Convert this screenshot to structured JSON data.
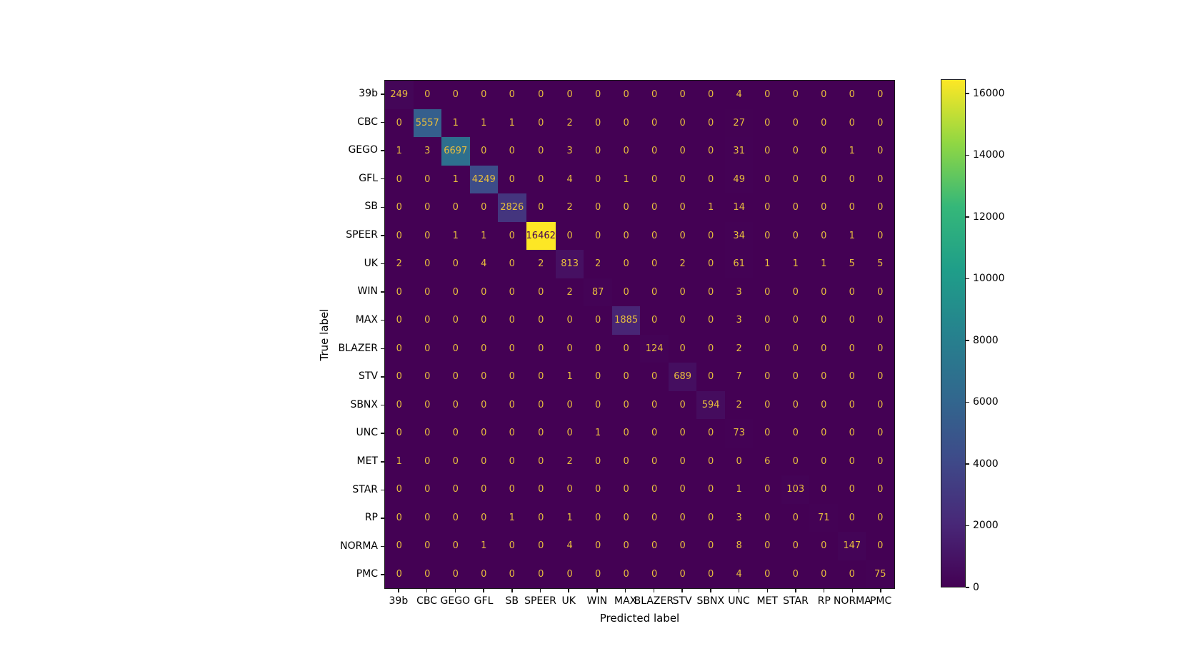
{
  "figure": {
    "background_color": "#ffffff",
    "title": ""
  },
  "chart_data": {
    "type": "heatmap",
    "subtype": "confusion-matrix",
    "title": "",
    "xlabel": "Predicted label",
    "ylabel": "True label",
    "categories": [
      "39b",
      "CBC",
      "GEGO",
      "GFL",
      "SB",
      "SPEER",
      "UK",
      "WIN",
      "MAX",
      "BLAZER",
      "STV",
      "SBNX",
      "UNC",
      "MET",
      "STAR",
      "RP",
      "NORMA",
      "PMC"
    ],
    "matrix": [
      [
        249,
        0,
        0,
        0,
        0,
        0,
        0,
        0,
        0,
        0,
        0,
        0,
        4,
        0,
        0,
        0,
        0,
        0
      ],
      [
        0,
        5557,
        1,
        1,
        1,
        0,
        2,
        0,
        0,
        0,
        0,
        0,
        27,
        0,
        0,
        0,
        0,
        0
      ],
      [
        1,
        3,
        6697,
        0,
        0,
        0,
        3,
        0,
        0,
        0,
        0,
        0,
        31,
        0,
        0,
        0,
        1,
        0
      ],
      [
        0,
        0,
        1,
        4249,
        0,
        0,
        4,
        0,
        1,
        0,
        0,
        0,
        49,
        0,
        0,
        0,
        0,
        0
      ],
      [
        0,
        0,
        0,
        0,
        2826,
        0,
        2,
        0,
        0,
        0,
        0,
        1,
        14,
        0,
        0,
        0,
        0,
        0
      ],
      [
        0,
        0,
        1,
        1,
        0,
        16462,
        0,
        0,
        0,
        0,
        0,
        0,
        34,
        0,
        0,
        0,
        1,
        0
      ],
      [
        2,
        0,
        0,
        4,
        0,
        2,
        813,
        2,
        0,
        0,
        2,
        0,
        61,
        1,
        1,
        1,
        5,
        5
      ],
      [
        0,
        0,
        0,
        0,
        0,
        0,
        2,
        87,
        0,
        0,
        0,
        0,
        3,
        0,
        0,
        0,
        0,
        0
      ],
      [
        0,
        0,
        0,
        0,
        0,
        0,
        0,
        0,
        1885,
        0,
        0,
        0,
        3,
        0,
        0,
        0,
        0,
        0
      ],
      [
        0,
        0,
        0,
        0,
        0,
        0,
        0,
        0,
        0,
        124,
        0,
        0,
        2,
        0,
        0,
        0,
        0,
        0
      ],
      [
        0,
        0,
        0,
        0,
        0,
        0,
        1,
        0,
        0,
        0,
        689,
        0,
        7,
        0,
        0,
        0,
        0,
        0
      ],
      [
        0,
        0,
        0,
        0,
        0,
        0,
        0,
        0,
        0,
        0,
        0,
        594,
        2,
        0,
        0,
        0,
        0,
        0
      ],
      [
        0,
        0,
        0,
        0,
        0,
        0,
        0,
        1,
        0,
        0,
        0,
        0,
        73,
        0,
        0,
        0,
        0,
        0
      ],
      [
        1,
        0,
        0,
        0,
        0,
        0,
        2,
        0,
        0,
        0,
        0,
        0,
        0,
        6,
        0,
        0,
        0,
        0
      ],
      [
        0,
        0,
        0,
        0,
        0,
        0,
        0,
        0,
        0,
        0,
        0,
        0,
        1,
        0,
        103,
        0,
        0,
        0
      ],
      [
        0,
        0,
        0,
        0,
        1,
        0,
        1,
        0,
        0,
        0,
        0,
        0,
        3,
        0,
        0,
        71,
        0,
        0
      ],
      [
        0,
        0,
        0,
        1,
        0,
        0,
        4,
        0,
        0,
        0,
        0,
        0,
        8,
        0,
        0,
        0,
        147,
        0
      ],
      [
        0,
        0,
        0,
        0,
        0,
        0,
        0,
        0,
        0,
        0,
        0,
        0,
        4,
        0,
        0,
        0,
        0,
        75
      ]
    ],
    "vmin": 0,
    "vmax": 16462,
    "colormap": "viridis",
    "grid": false,
    "legend_position": "right-colorbar",
    "colorbar": {
      "ticks": [
        0,
        2000,
        4000,
        6000,
        8000,
        10000,
        12000,
        14000,
        16000
      ]
    }
  },
  "colors": {
    "axis_text": "#000000",
    "cell_text_on_dark": "#e9be3d",
    "cell_text_on_bright": "#440154",
    "viridis_stops": [
      {
        "t": 0.0,
        "rgb": [
          68,
          1,
          84
        ]
      },
      {
        "t": 0.125,
        "rgb": [
          72,
          40,
          120
        ]
      },
      {
        "t": 0.25,
        "rgb": [
          62,
          74,
          137
        ]
      },
      {
        "t": 0.375,
        "rgb": [
          49,
          104,
          142
        ]
      },
      {
        "t": 0.5,
        "rgb": [
          38,
          130,
          142
        ]
      },
      {
        "t": 0.625,
        "rgb": [
          31,
          158,
          137
        ]
      },
      {
        "t": 0.75,
        "rgb": [
          53,
          183,
          121
        ]
      },
      {
        "t": 0.875,
        "rgb": [
          144,
          215,
          67
        ]
      },
      {
        "t": 1.0,
        "rgb": [
          253,
          231,
          37
        ]
      }
    ]
  }
}
